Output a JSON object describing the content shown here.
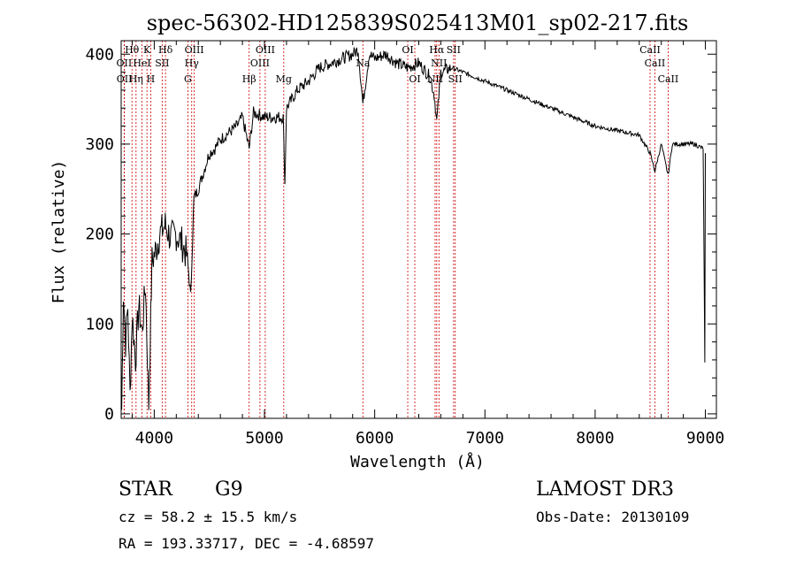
{
  "chart_data": {
    "type": "line",
    "title": "spec-56302-HD125839S025413M01_sp02-217.fits",
    "xlabel": "Wavelength (Å)",
    "ylabel": "Flux (relative)",
    "xlim": [
      3700,
      9100
    ],
    "ylim": [
      -5,
      415
    ],
    "xticks": [
      4000,
      5000,
      6000,
      7000,
      8000,
      9000
    ],
    "yticks": [
      0,
      100,
      200,
      300,
      400
    ],
    "series": [
      {
        "name": "flux",
        "x": [
          3705,
          3720,
          3740,
          3760,
          3780,
          3800,
          3830,
          3860,
          3890,
          3920,
          3950,
          3980,
          4010,
          4050,
          4100,
          4150,
          4200,
          4250,
          4300,
          4330,
          4360,
          4400,
          4450,
          4500,
          4550,
          4600,
          4650,
          4700,
          4750,
          4800,
          4861,
          4900,
          5000,
          5100,
          5170,
          5185,
          5200,
          5300,
          5400,
          5500,
          5600,
          5700,
          5800,
          5850,
          5893,
          5950,
          6000,
          6100,
          6200,
          6300,
          6400,
          6500,
          6540,
          6563,
          6600,
          6700,
          6800,
          6900,
          7000,
          7200,
          7400,
          7600,
          7800,
          8000,
          8200,
          8400,
          8498,
          8542,
          8600,
          8662,
          8700,
          8800,
          8900,
          8980,
          8995,
          9000
        ],
        "y": [
          5,
          135,
          80,
          120,
          20,
          110,
          60,
          120,
          90,
          145,
          10,
          170,
          180,
          200,
          210,
          195,
          200,
          190,
          175,
          130,
          240,
          250,
          270,
          290,
          295,
          305,
          310,
          315,
          320,
          330,
          295,
          335,
          330,
          330,
          330,
          255,
          340,
          360,
          370,
          385,
          390,
          395,
          400,
          405,
          345,
          400,
          395,
          400,
          390,
          385,
          390,
          375,
          355,
          325,
          380,
          385,
          380,
          375,
          370,
          360,
          350,
          340,
          330,
          320,
          315,
          310,
          290,
          270,
          300,
          265,
          300,
          300,
          300,
          295,
          55,
          290
        ]
      }
    ],
    "lines": [
      {
        "name": "H-theta",
        "label": "Hθ",
        "wavelength": 3798,
        "row": 0
      },
      {
        "name": "OII-3727",
        "label": "OII",
        "wavelength": 3727,
        "row": 1
      },
      {
        "name": "OII-3727b",
        "label": "OII",
        "wavelength": 3729,
        "row": 2
      },
      {
        "name": "K",
        "label": "K",
        "wavelength": 3934,
        "row": 0
      },
      {
        "name": "H-eta",
        "label": "Hη",
        "wavelength": 3835,
        "row": 2
      },
      {
        "name": "HeI",
        "label": "HeI",
        "wavelength": 3889,
        "row": 1
      },
      {
        "name": "H",
        "label": "H",
        "wavelength": 3968,
        "row": 2
      },
      {
        "name": "H-delta",
        "label": "Hδ",
        "wavelength": 4102,
        "row": 0
      },
      {
        "name": "SII-4072",
        "label": "SII",
        "wavelength": 4072,
        "row": 1
      },
      {
        "name": "OIII-4363",
        "label": "OIII",
        "wavelength": 4363,
        "row": 0
      },
      {
        "name": "H-gamma",
        "label": "Hγ",
        "wavelength": 4340,
        "row": 1
      },
      {
        "name": "G",
        "label": "G",
        "wavelength": 4305,
        "row": 2
      },
      {
        "name": "H-beta",
        "label": "Hβ",
        "wavelength": 4861,
        "row": 3
      },
      {
        "name": "OIII-5007",
        "label": "OIII",
        "wavelength": 5007,
        "row": 0
      },
      {
        "name": "OIII-4959",
        "label": "OIII",
        "wavelength": 4959,
        "row": 1
      },
      {
        "name": "Mg",
        "label": "Mg",
        "wavelength": 5175,
        "row": 3
      },
      {
        "name": "Na",
        "label": "Na",
        "wavelength": 5893,
        "row": 1
      },
      {
        "name": "OI-6300",
        "label": "OI",
        "wavelength": 6300,
        "row": 0
      },
      {
        "name": "OI-6364",
        "label": "OI",
        "wavelength": 6364,
        "row": 2
      },
      {
        "name": "H-alpha",
        "label": "Hα",
        "wavelength": 6563,
        "row": 0
      },
      {
        "name": "NII-6583",
        "label": "NII",
        "wavelength": 6583,
        "row": 1
      },
      {
        "name": "NII-6548",
        "label": "NII",
        "wavelength": 6548,
        "row": 2
      },
      {
        "name": "SII-6716",
        "label": "SII",
        "wavelength": 6716,
        "row": 0
      },
      {
        "name": "SII-6731",
        "label": "SII",
        "wavelength": 6731,
        "row": 2
      },
      {
        "name": "CaII-8498",
        "label": "CaII",
        "wavelength": 8498,
        "row": 0
      },
      {
        "name": "CaII-8542",
        "label": "CaII",
        "wavelength": 8542,
        "row": 1
      },
      {
        "name": "CaII-8662",
        "label": "CaII",
        "wavelength": 8662,
        "row": 2
      }
    ]
  },
  "info": {
    "class": "STAR",
    "subclass": "G9",
    "survey": "LAMOST DR3",
    "cz": "cz = 58.2 ± 15.5 km/s",
    "obs_date": "Obs-Date: 20130109",
    "coords": "RA = 193.33717, DEC =  -4.68597"
  },
  "colors": {
    "line_marker": "#cc0000",
    "spectrum": "#000000"
  }
}
